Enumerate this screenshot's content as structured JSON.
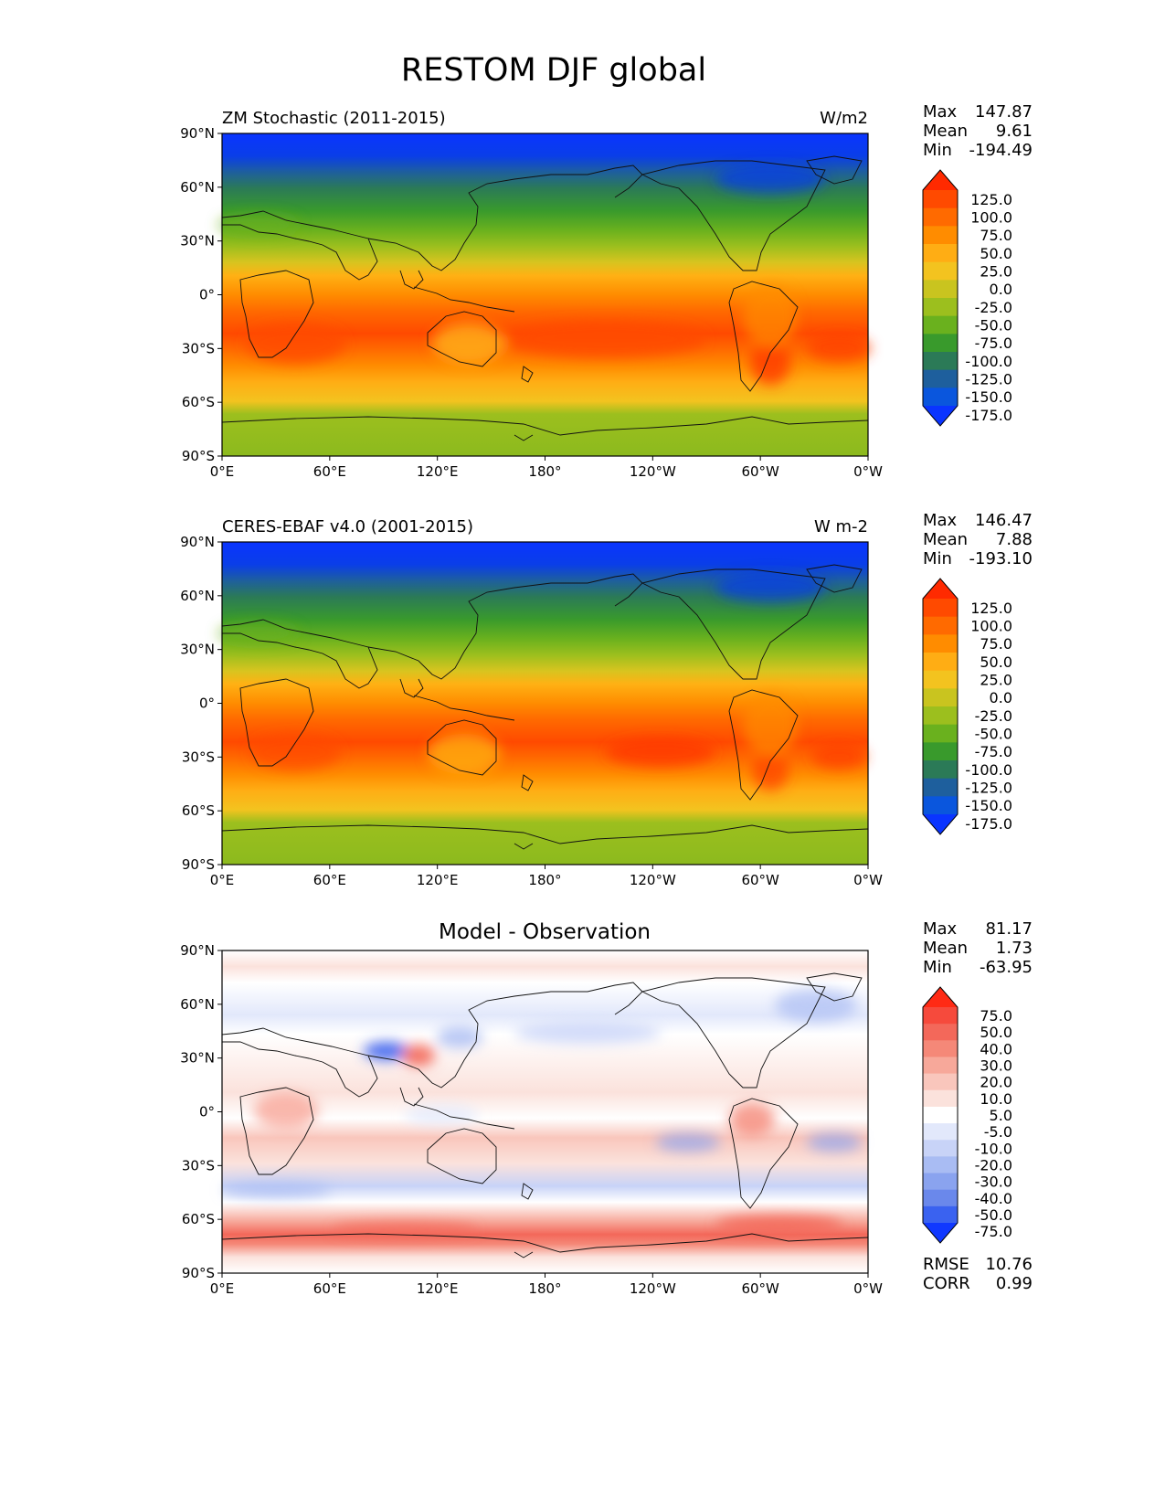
{
  "title": "RESTOM DJF global",
  "panels": [
    {
      "id": "model",
      "left_title": "ZM Stochastic (2011-2015)",
      "right_title": "W/m2",
      "center_title": "",
      "stats": [
        {
          "label": "Max",
          "value": "147.87"
        },
        {
          "label": "Mean",
          "value": "9.61"
        },
        {
          "label": "Min",
          "value": "-194.49"
        }
      ],
      "extra_stats": [],
      "colorbar": {
        "ticks": [
          "125.0",
          "100.0",
          "75.0",
          "50.0",
          "25.0",
          "0.0",
          "-25.0",
          "-50.0",
          "-75.0",
          "-100.0",
          "-125.0",
          "-150.0",
          "-175.0"
        ],
        "colors": [
          "#ff2a00",
          "#ff4a00",
          "#ff6a00",
          "#ff8c00",
          "#ffad14",
          "#f3c31f",
          "#c9c41f",
          "#9cbf1e",
          "#6ab11e",
          "#399a2c",
          "#2b7a57",
          "#1e5f9d",
          "#0a56dd",
          "#0a34ff"
        ]
      }
    },
    {
      "id": "obs",
      "left_title": "CERES-EBAF v4.0 (2001-2015)",
      "right_title": "W m-2",
      "center_title": "",
      "stats": [
        {
          "label": "Max",
          "value": "146.47"
        },
        {
          "label": "Mean",
          "value": "7.88"
        },
        {
          "label": "Min",
          "value": "-193.10"
        }
      ],
      "extra_stats": [],
      "colorbar": {
        "ticks": [
          "125.0",
          "100.0",
          "75.0",
          "50.0",
          "25.0",
          "0.0",
          "-25.0",
          "-50.0",
          "-75.0",
          "-100.0",
          "-125.0",
          "-150.0",
          "-175.0"
        ],
        "colors": [
          "#ff2a00",
          "#ff4a00",
          "#ff6a00",
          "#ff8c00",
          "#ffad14",
          "#f3c31f",
          "#c9c41f",
          "#9cbf1e",
          "#6ab11e",
          "#399a2c",
          "#2b7a57",
          "#1e5f9d",
          "#0a56dd",
          "#0a34ff"
        ]
      }
    },
    {
      "id": "diff",
      "left_title": "",
      "right_title": "",
      "center_title": "Model - Observation",
      "stats": [
        {
          "label": "Max",
          "value": "81.17"
        },
        {
          "label": "Mean",
          "value": "1.73"
        },
        {
          "label": "Min",
          "value": "-63.95"
        }
      ],
      "extra_stats": [
        {
          "label": "RMSE",
          "value": "10.76"
        },
        {
          "label": "CORR",
          "value": "0.99"
        }
      ],
      "colorbar": {
        "ticks": [
          "75.0",
          "50.0",
          "40.0",
          "30.0",
          "20.0",
          "10.0",
          "5.0",
          "-5.0",
          "-10.0",
          "-20.0",
          "-30.0",
          "-40.0",
          "-50.0",
          "-75.0"
        ],
        "colors": [
          "#ff2a14",
          "#f64a3c",
          "#f3685a",
          "#f58878",
          "#f7a89a",
          "#f9c6bc",
          "#fbe2dc",
          "#ffffff",
          "#e2e8fb",
          "#c8d3f7",
          "#a9bcf3",
          "#8aa3ef",
          "#6a88eb",
          "#3a62f0",
          "#1038ff"
        ]
      }
    }
  ],
  "axes": {
    "lat_ticks": [
      "90°N",
      "60°N",
      "30°N",
      "0°",
      "30°S",
      "60°S",
      "90°S"
    ],
    "lon_ticks": [
      "0°E",
      "60°E",
      "120°E",
      "180°",
      "120°W",
      "60°W",
      "0°W"
    ]
  },
  "chart_data": [
    {
      "type": "heatmap",
      "title": "ZM Stochastic (2011-2015)",
      "units": "W/m2",
      "xlabel": "",
      "ylabel": "",
      "x_ticks": [
        "0°E",
        "60°E",
        "120°E",
        "180°",
        "120°W",
        "60°W",
        "0°W"
      ],
      "y_ticks": [
        "90°N",
        "60°N",
        "30°N",
        "0°",
        "30°S",
        "60°S",
        "90°S"
      ],
      "xlim": [
        0,
        360
      ],
      "ylim": [
        -90,
        90
      ],
      "levels": [
        -175,
        -150,
        -125,
        -100,
        -75,
        -50,
        -25,
        0,
        25,
        50,
        75,
        100,
        125
      ],
      "max": 147.87,
      "mean": 9.61,
      "min": -194.49,
      "zonal_profile": {
        "lat": [
          90,
          80,
          70,
          60,
          50,
          40,
          30,
          20,
          10,
          0,
          -10,
          -20,
          -30,
          -40,
          -50,
          -60,
          -70,
          -75,
          -80,
          -90
        ],
        "value": [
          -190,
          -180,
          -150,
          -120,
          -75,
          -40,
          -15,
          10,
          40,
          75,
          105,
          120,
          110,
          85,
          60,
          40,
          -20,
          -50,
          -55,
          -60
        ]
      }
    },
    {
      "type": "heatmap",
      "title": "CERES-EBAF v4.0 (2001-2015)",
      "units": "W m-2",
      "xlabel": "",
      "ylabel": "",
      "x_ticks": [
        "0°E",
        "60°E",
        "120°E",
        "180°",
        "120°W",
        "60°W",
        "0°W"
      ],
      "y_ticks": [
        "90°N",
        "60°N",
        "30°N",
        "0°",
        "30°S",
        "60°S",
        "90°S"
      ],
      "xlim": [
        0,
        360
      ],
      "ylim": [
        -90,
        90
      ],
      "levels": [
        -175,
        -150,
        -125,
        -100,
        -75,
        -50,
        -25,
        0,
        25,
        50,
        75,
        100,
        125
      ],
      "max": 146.47,
      "mean": 7.88,
      "min": -193.1,
      "zonal_profile": {
        "lat": [
          90,
          80,
          70,
          60,
          50,
          40,
          30,
          20,
          10,
          0,
          -10,
          -20,
          -30,
          -40,
          -50,
          -60,
          -70,
          -75,
          -80,
          -90
        ],
        "value": [
          -190,
          -180,
          -150,
          -120,
          -75,
          -40,
          -15,
          10,
          40,
          75,
          100,
          115,
          105,
          80,
          55,
          35,
          -25,
          -55,
          -60,
          -65
        ]
      }
    },
    {
      "type": "heatmap",
      "title": "Model - Observation",
      "units": "",
      "xlabel": "",
      "ylabel": "",
      "x_ticks": [
        "0°E",
        "60°E",
        "120°E",
        "180°",
        "120°W",
        "60°W",
        "0°W"
      ],
      "y_ticks": [
        "90°N",
        "60°N",
        "30°N",
        "0°",
        "30°S",
        "60°S",
        "90°S"
      ],
      "xlim": [
        0,
        360
      ],
      "ylim": [
        -90,
        90
      ],
      "levels": [
        -75,
        -50,
        -40,
        -30,
        -20,
        -10,
        -5,
        5,
        10,
        20,
        30,
        40,
        50,
        75
      ],
      "max": 81.17,
      "mean": 1.73,
      "min": -63.95,
      "rmse": 10.76,
      "corr": 0.99
    }
  ]
}
